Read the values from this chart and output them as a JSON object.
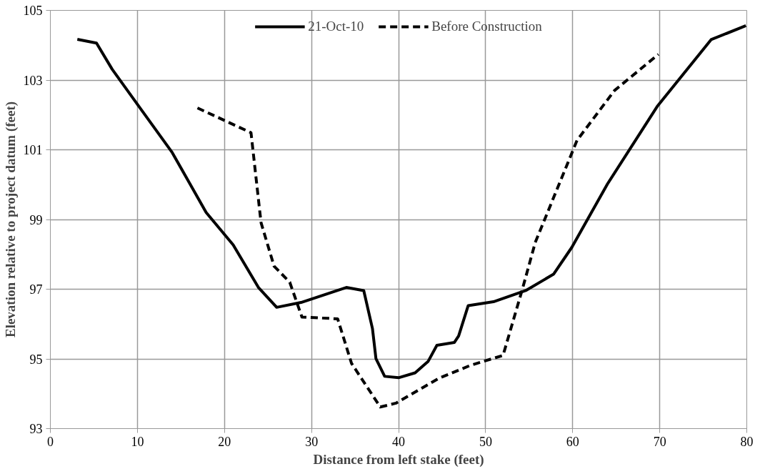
{
  "chart_data": {
    "type": "line",
    "xlabel": "Distance from left stake (feet)",
    "ylabel": "Elevation relative to project datum (feet)",
    "xlim": [
      0,
      80
    ],
    "xticks": [
      0,
      10,
      20,
      30,
      40,
      50,
      60,
      70,
      80
    ],
    "ylim": [
      93,
      105
    ],
    "yticks": [
      93,
      95,
      97,
      99,
      101,
      103,
      105
    ],
    "grid": true,
    "legend": "top",
    "marker": "none",
    "series": [
      {
        "name": "21-Oct-10",
        "color": "#000000",
        "line_style": "solid",
        "x": [
          3.1,
          5.3,
          7.1,
          10.1,
          14.0,
          17.9,
          21.0,
          23.9,
          26.0,
          28.8,
          34.0,
          36.0,
          37.0,
          37.4,
          38.4,
          40.0,
          41.9,
          43.4,
          44.4,
          46.4,
          46.9,
          48.0,
          50.9,
          54.6,
          57.8,
          59.9,
          64.0,
          69.7,
          75.9,
          79.9
        ],
        "values": [
          104.17,
          104.06,
          103.31,
          102.27,
          100.92,
          99.2,
          98.27,
          97.05,
          96.48,
          96.62,
          97.05,
          96.96,
          95.87,
          95.01,
          94.5,
          94.46,
          94.6,
          94.93,
          95.39,
          95.47,
          95.66,
          96.53,
          96.64,
          96.96,
          97.43,
          98.2,
          100.02,
          102.24,
          104.16,
          104.56
        ]
      },
      {
        "name": "Before Construction",
        "color": "#000000",
        "line_style": "dashed",
        "x": [
          16.9,
          23.05,
          24.2,
          25.7,
          27.5,
          28.9,
          33.0,
          34.6,
          37.9,
          39.7,
          44.6,
          48.2,
          52.0,
          54.2,
          55.7,
          60.5,
          64.8,
          69.85
        ],
        "values": [
          102.2,
          101.49,
          98.91,
          97.66,
          97.2,
          96.2,
          96.15,
          94.87,
          93.62,
          93.73,
          94.44,
          94.81,
          95.1,
          96.98,
          98.34,
          101.27,
          102.7,
          103.74
        ]
      }
    ]
  }
}
